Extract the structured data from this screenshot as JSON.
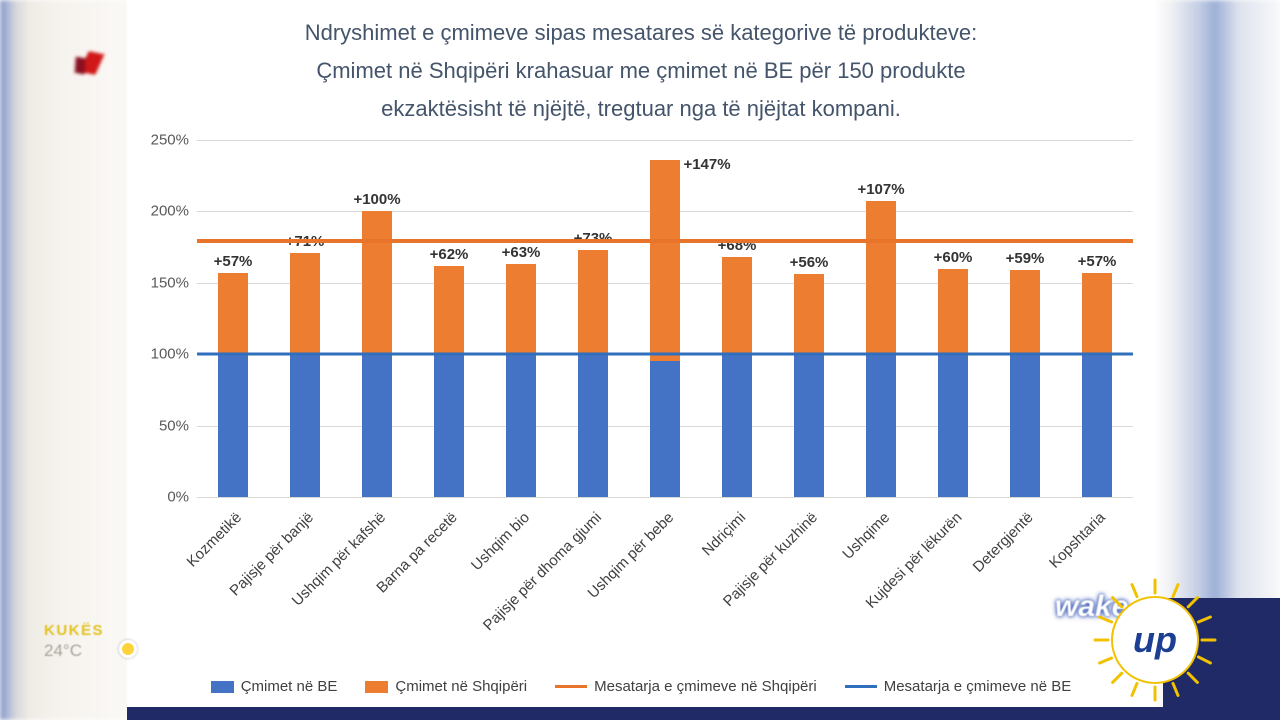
{
  "chart_data": {
    "type": "bar",
    "title_lines": [
      "Ndryshimet e çmimeve sipas mesatares së kategorive të produkteve:",
      "Çmimet në Shqipëri krahasuar me çmimet në BE për 150 produkte",
      "ekzaktësisht të njëjtë, tregtuar nga të njëjtat kompani."
    ],
    "categories": [
      "Kozmetikë",
      "Pajisje për banjë",
      "Ushqim për kafshë",
      "Barna pa recetë",
      "Ushqim bio",
      "Pajisje për dhoma gjumi",
      "Ushqim për bebe",
      "Ndriçimi",
      "Pajisje për kuzhinë",
      "Ushqime",
      "Kujdesi për lëkurën",
      "Detergjentë",
      "Kopshtaria"
    ],
    "series": [
      {
        "name": "Çmimet në BE",
        "color": "#4472c4",
        "values": [
          100,
          100,
          100,
          100,
          100,
          100,
          100,
          100,
          100,
          100,
          100,
          100,
          100
        ]
      },
      {
        "name": "Çmimet në Shqipëri",
        "color": "#ed7d31",
        "values": [
          157,
          171,
          200,
          162,
          163,
          173,
          247,
          168,
          156,
          207,
          160,
          159,
          157
        ]
      }
    ],
    "bar_labels": [
      "+57%",
      "+71%",
      "+100%",
      "+62%",
      "+63%",
      "+73%",
      "+147%",
      "+68%",
      "+56%",
      "+107%",
      "+60%",
      "+59%",
      "+57%"
    ],
    "avg_lines": [
      {
        "name": "Mesatarja e çmimeve në Shqipëri",
        "value": 179,
        "color": "#e8732a"
      },
      {
        "name": "Mesatarja e çmimeve në BE",
        "value": 100,
        "color": "#2f6fbe"
      }
    ],
    "ylim": [
      0,
      250
    ],
    "yticks": [
      {
        "value": 0,
        "label": "0%"
      },
      {
        "value": 50,
        "label": "50%"
      },
      {
        "value": 100,
        "label": "100%"
      },
      {
        "value": 150,
        "label": "150%"
      },
      {
        "value": 200,
        "label": "200%"
      },
      {
        "value": 250,
        "label": "250%"
      }
    ],
    "legend": [
      {
        "label": "Çmimet në BE",
        "swatch": "box",
        "color": "#4472c4"
      },
      {
        "label": "Çmimet në Shqipëri",
        "swatch": "box",
        "color": "#ed7d31"
      },
      {
        "label": "Mesatarja e çmimeve në Shqipëri",
        "swatch": "line",
        "color": "#e8732a"
      },
      {
        "label": "Mesatarja e çmimeve në BE",
        "swatch": "line",
        "color": "#2f6fbe"
      }
    ],
    "grid": true,
    "legend_position": "bottom"
  },
  "overlay": {
    "location_label": "KUKËS",
    "temperature": "24°C",
    "logo_wake": "wake",
    "logo_up": "up"
  }
}
